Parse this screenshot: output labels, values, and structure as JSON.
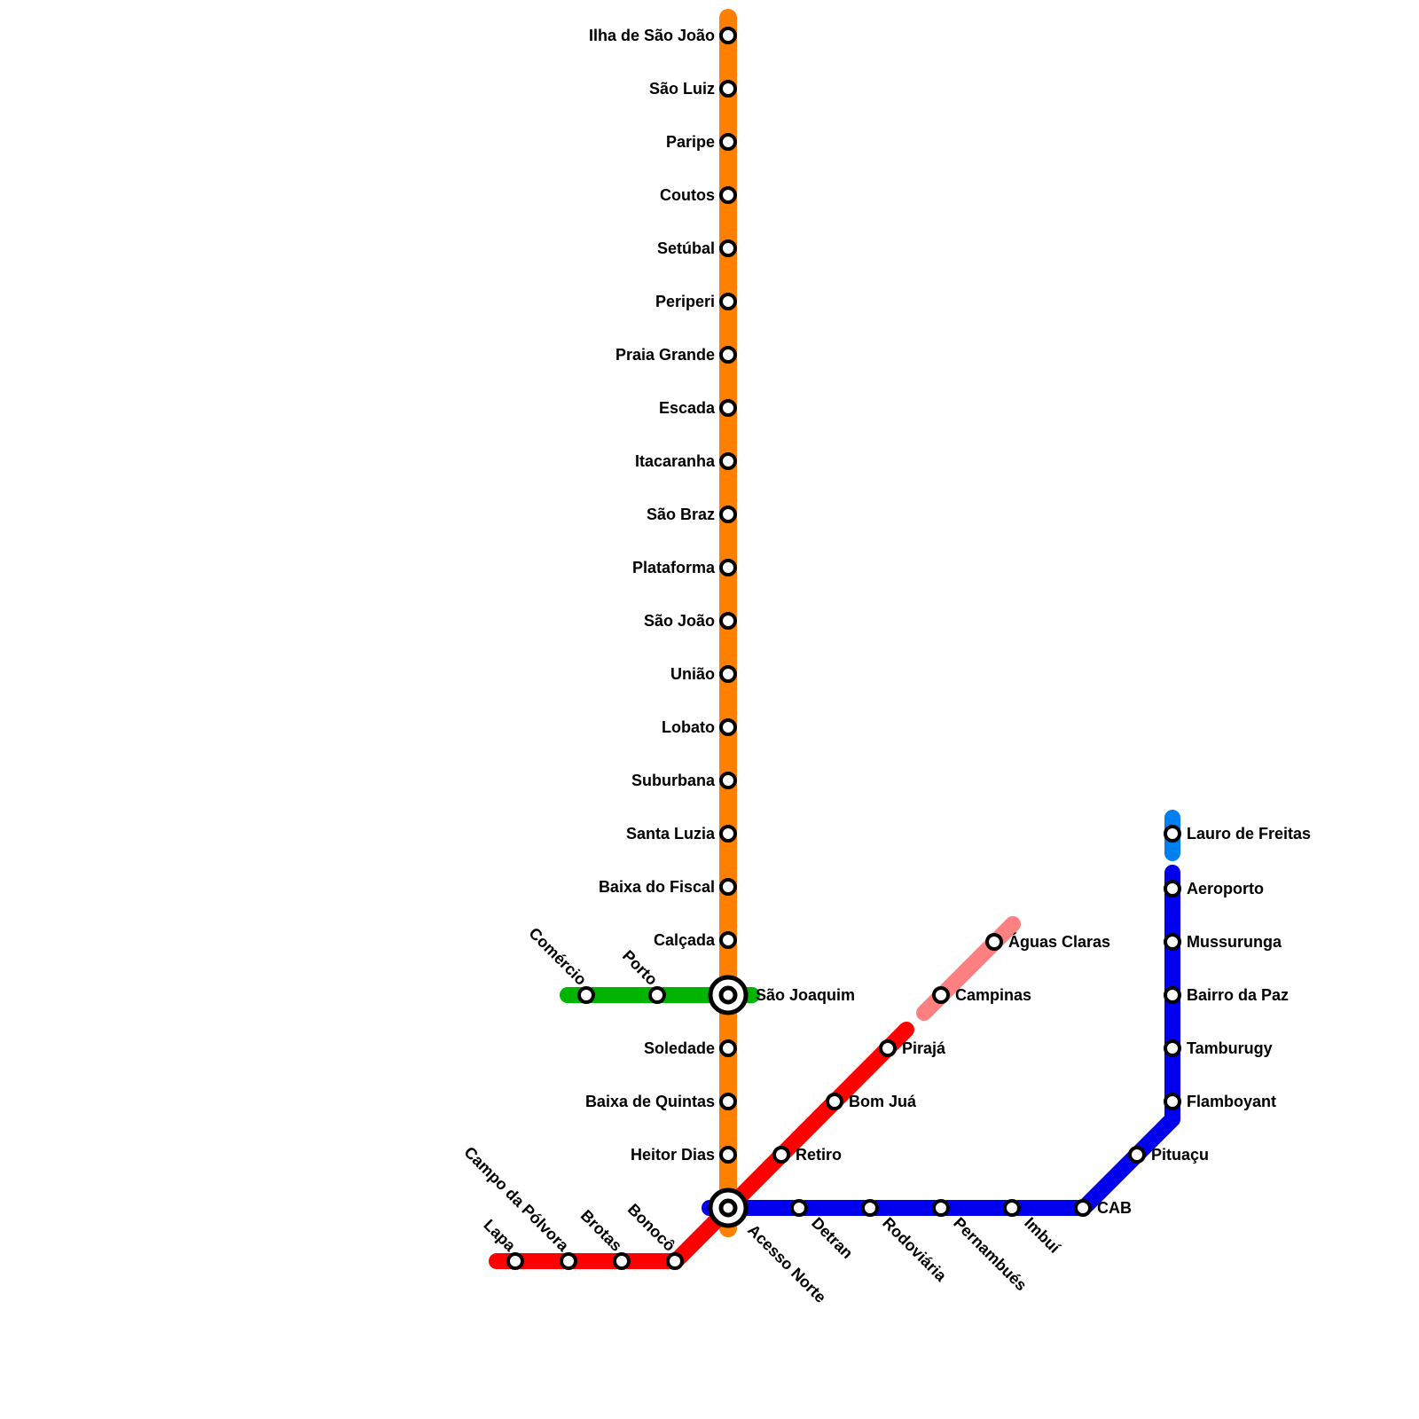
{
  "lines": [
    {
      "id": "orange",
      "color": "#ff8000"
    },
    {
      "id": "green",
      "color": "#00b400"
    },
    {
      "id": "red",
      "color": "#ff0000"
    },
    {
      "id": "blue",
      "color": "#0000ee"
    },
    {
      "id": "sky",
      "color": "#0080ee"
    },
    {
      "id": "pink",
      "color": "#ff8080"
    }
  ],
  "stations": {
    "ilha_sao_joao": "Ilha de São João",
    "sao_luiz": "São Luiz",
    "paripe": "Paripe",
    "coutos": "Coutos",
    "setubal": "Setúbal",
    "periperi": "Periperi",
    "praia_grande": "Praia Grande",
    "escada": "Escada",
    "itacaranha": "Itacaranha",
    "sao_braz": "São Braz",
    "plataforma": "Plataforma",
    "sao_joao": "São João",
    "uniao": "União",
    "lobato": "Lobato",
    "suburbana": "Suburbana",
    "santa_luzia": "Santa Luzia",
    "baixa_fiscal": "Baixa do Fiscal",
    "calcada": "Calçada",
    "sao_joaquim": "São Joaquim",
    "soledade": "Soledade",
    "baixa_quintas": "Baixa de Quintas",
    "heitor_dias": "Heitor Dias",
    "acesso_norte": "Acesso Norte",
    "comercio": "Comércio",
    "porto": "Porto",
    "lapa": "Lapa",
    "campo_polvora": "Campo da Pólvora",
    "brotas": "Brotas",
    "bonoco": "Bonocô",
    "retiro": "Retiro",
    "bom_jua": "Bom Juá",
    "piraja": "Pirajá",
    "campinas": "Campinas",
    "aguas_claras": "Águas Claras",
    "detran": "Detran",
    "rodoviaria": "Rodoviária",
    "pernambues": "Pernambués",
    "imbui": "Imbuí",
    "cab": "CAB",
    "pituacu": "Pituaçu",
    "flamboyant": "Flamboyant",
    "tamburugy": "Tamburugy",
    "bairro_paz": "Bairro da Paz",
    "mussurunga": "Mussurunga",
    "aeroporto": "Aeroporto",
    "lauro_freitas": "Lauro de Freitas"
  }
}
